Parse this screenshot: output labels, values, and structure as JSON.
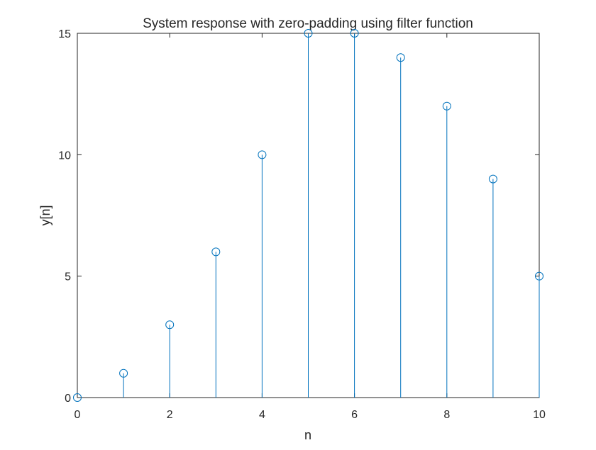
{
  "chart_data": {
    "type": "stem",
    "title": "System response with zero-padding using filter function",
    "xlabel": "n",
    "ylabel": "y[n]",
    "xlim": [
      0,
      10
    ],
    "ylim": [
      0,
      15
    ],
    "x_ticks": [
      "0",
      "2",
      "4",
      "6",
      "8",
      "10"
    ],
    "y_ticks": [
      "0",
      "5",
      "10",
      "15"
    ],
    "x": [
      0,
      1,
      2,
      3,
      4,
      5,
      6,
      7,
      8,
      9,
      10
    ],
    "values": [
      0,
      1,
      3,
      6,
      10,
      15,
      15,
      14,
      12,
      9,
      5
    ],
    "grid": false,
    "legend": "none",
    "series_color": "#0072BD",
    "axis_color": "#262626"
  }
}
